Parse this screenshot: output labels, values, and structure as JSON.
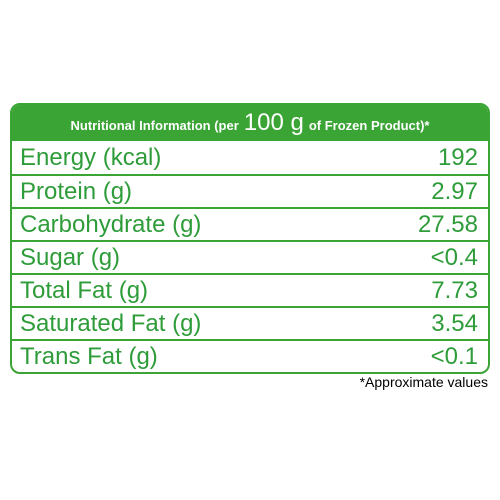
{
  "header": {
    "prefix": "Nutritional Information (per",
    "amount": "100 g",
    "suffix": "of Frozen Product)*"
  },
  "table": {
    "rows": [
      [
        "Energy (kcal)",
        "192"
      ],
      [
        "Protein (g)",
        "2.97"
      ],
      [
        "Carbohydrate (g)",
        "27.58"
      ],
      [
        "Sugar (g)",
        "<0.4"
      ],
      [
        "Total Fat (g)",
        "7.73"
      ],
      [
        "Saturated Fat (g)",
        "3.54"
      ],
      [
        "Trans Fat (g)",
        "<0.1"
      ]
    ]
  },
  "footnote": "*Approximate values"
}
